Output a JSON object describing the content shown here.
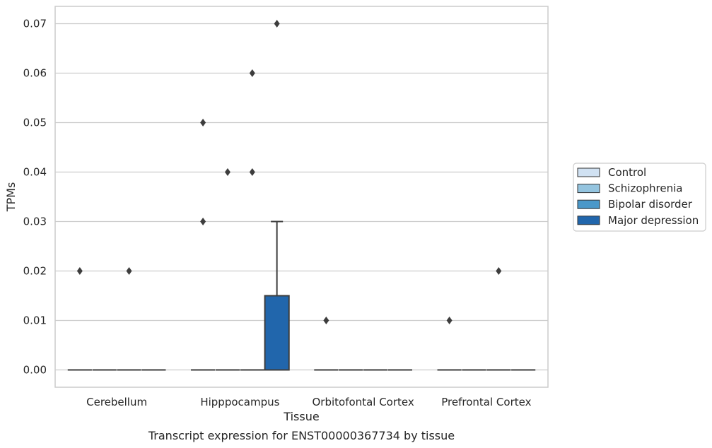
{
  "chart_data": {
    "type": "box",
    "xlabel": "Tissue",
    "ylabel": "TPMs",
    "caption": "Transcript expression for ENST00000367734 by tissue",
    "ylim": [
      -0.0035,
      0.0735
    ],
    "yticks": [
      0.0,
      0.01,
      0.02,
      0.03,
      0.04,
      0.05,
      0.06,
      0.07
    ],
    "ytick_labels": [
      "0.00",
      "0.01",
      "0.02",
      "0.03",
      "0.04",
      "0.05",
      "0.06",
      "0.07"
    ],
    "grid": "horizontal",
    "legend_position": "right",
    "categories": [
      "Cerebellum",
      "Hipppocampus",
      "Orbitofontal Cortex",
      "Prefrontal Cortex"
    ],
    "series": [
      {
        "name": "Control",
        "color": "#d0e1f2",
        "boxes": [
          {
            "q1": 0,
            "median": 0,
            "q3": 0,
            "whislo": 0,
            "whishi": 0,
            "outliers": [
              0.02
            ]
          },
          {
            "q1": 0,
            "median": 0,
            "q3": 0,
            "whislo": 0,
            "whishi": 0,
            "outliers": [
              0.03,
              0.05
            ]
          },
          {
            "q1": 0,
            "median": 0,
            "q3": 0,
            "whislo": 0,
            "whishi": 0,
            "outliers": [
              0.01
            ]
          },
          {
            "q1": 0,
            "median": 0,
            "q3": 0,
            "whislo": 0,
            "whishi": 0,
            "outliers": [
              0.01
            ]
          }
        ]
      },
      {
        "name": "Schizophrenia",
        "color": "#94c4df",
        "boxes": [
          {
            "q1": 0,
            "median": 0,
            "q3": 0,
            "whislo": 0,
            "whishi": 0,
            "outliers": []
          },
          {
            "q1": 0,
            "median": 0,
            "q3": 0,
            "whislo": 0,
            "whishi": 0,
            "outliers": [
              0.04
            ]
          },
          {
            "q1": 0,
            "median": 0,
            "q3": 0,
            "whislo": 0,
            "whishi": 0,
            "outliers": []
          },
          {
            "q1": 0,
            "median": 0,
            "q3": 0,
            "whislo": 0,
            "whishi": 0,
            "outliers": []
          }
        ]
      },
      {
        "name": "Bipolar disorder",
        "color": "#4a98c9",
        "boxes": [
          {
            "q1": 0,
            "median": 0,
            "q3": 0,
            "whislo": 0,
            "whishi": 0,
            "outliers": [
              0.02
            ]
          },
          {
            "q1": 0,
            "median": 0,
            "q3": 0,
            "whislo": 0,
            "whishi": 0,
            "outliers": [
              0.04,
              0.06
            ]
          },
          {
            "q1": 0,
            "median": 0,
            "q3": 0,
            "whislo": 0,
            "whishi": 0,
            "outliers": []
          },
          {
            "q1": 0,
            "median": 0,
            "q3": 0,
            "whislo": 0,
            "whishi": 0,
            "outliers": [
              0.02
            ]
          }
        ]
      },
      {
        "name": "Major depression",
        "color": "#2166ac",
        "boxes": [
          {
            "q1": 0,
            "median": 0,
            "q3": 0,
            "whislo": 0,
            "whishi": 0,
            "outliers": []
          },
          {
            "q1": 0,
            "median": 0,
            "q3": 0.015,
            "whislo": 0,
            "whishi": 0.03,
            "outliers": [
              0.07
            ]
          },
          {
            "q1": 0,
            "median": 0,
            "q3": 0,
            "whislo": 0,
            "whishi": 0,
            "outliers": []
          },
          {
            "q1": 0,
            "median": 0,
            "q3": 0,
            "whislo": 0,
            "whishi": 0,
            "outliers": []
          }
        ]
      }
    ],
    "colors": {
      "grid": "#cccccc",
      "spine": "#cccccc",
      "line": "#3d3d3d",
      "legend_border": "#cccccc"
    }
  }
}
